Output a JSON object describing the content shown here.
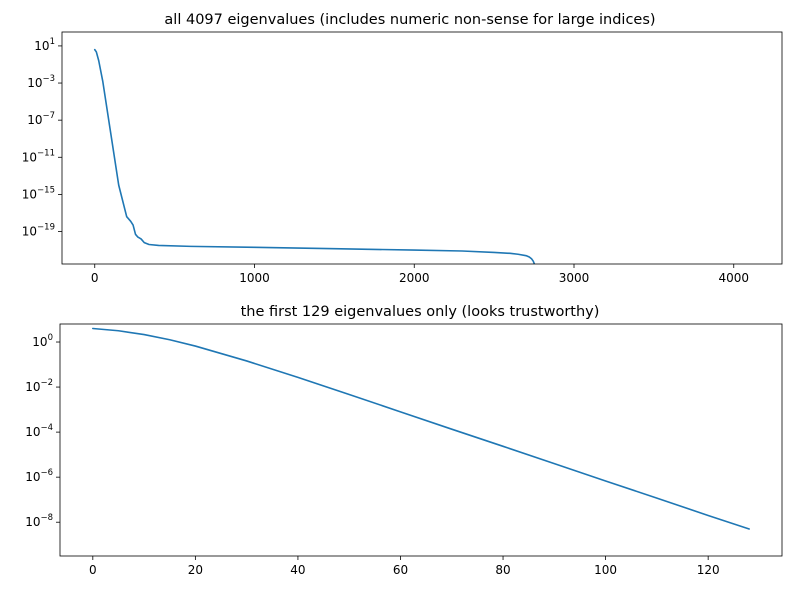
{
  "chart_data": [
    {
      "type": "line",
      "title": "all 4097 eigenvalues (includes numeric non-sense for large indices)",
      "xlabel": "",
      "ylabel": "",
      "yscale": "log",
      "xlim": [
        -205,
        4302
      ],
      "ylim_log10": [
        -22.5,
        2.5
      ],
      "xticks": [
        0,
        1000,
        2000,
        3000,
        4000
      ],
      "xtick_labels": [
        "0",
        "1000",
        "2000",
        "3000",
        "4000"
      ],
      "yticks_exp": [
        1,
        -3,
        -7,
        -11,
        -15,
        -19
      ],
      "ytick_labels": [
        {
          "base": "10",
          "exp": "1"
        },
        {
          "base": "10",
          "exp": "−3"
        },
        {
          "base": "10",
          "exp": "−7"
        },
        {
          "base": "10",
          "exp": "−11"
        },
        {
          "base": "10",
          "exp": "−15"
        },
        {
          "base": "10",
          "exp": "−19"
        }
      ],
      "grid": false,
      "color": "#1f77b4",
      "series": [
        {
          "x": [
            0,
            10,
            25,
            50,
            100,
            150,
            200,
            225,
            240,
            255,
            270,
            290,
            310,
            340,
            400,
            600,
            1000,
            1500,
            2000,
            2300,
            2500,
            2600,
            2650,
            2700,
            2720,
            2735,
            2745,
            2752,
            2755,
            2757
          ],
          "log10_y": [
            0.6,
            0.35,
            -0.6,
            -2.8,
            -8.4,
            -14.0,
            -17.4,
            -17.9,
            -18.3,
            -19.3,
            -19.6,
            -19.8,
            -20.2,
            -20.4,
            -20.5,
            -20.6,
            -20.7,
            -20.85,
            -21.0,
            -21.1,
            -21.25,
            -21.35,
            -21.45,
            -21.6,
            -21.75,
            -21.95,
            -22.2,
            -22.5,
            -23.0,
            -24.0
          ]
        }
      ]
    },
    {
      "type": "line",
      "title": "the first 129 eigenvalues only (looks trustworthy)",
      "xlabel": "",
      "ylabel": "",
      "yscale": "log",
      "xlim": [
        -6.4,
        134.4
      ],
      "ylim_log10": [
        -9.5,
        0.8
      ],
      "xticks": [
        0,
        20,
        40,
        60,
        80,
        100,
        120
      ],
      "xtick_labels": [
        "0",
        "20",
        "40",
        "60",
        "80",
        "100",
        "120"
      ],
      "yticks_exp": [
        0,
        -2,
        -4,
        -6,
        -8
      ],
      "ytick_labels": [
        {
          "base": "10",
          "exp": "0"
        },
        {
          "base": "10",
          "exp": "−2"
        },
        {
          "base": "10",
          "exp": "−4"
        },
        {
          "base": "10",
          "exp": "−6"
        },
        {
          "base": "10",
          "exp": "−8"
        }
      ],
      "grid": false,
      "color": "#1f77b4",
      "series": [
        {
          "x": [
            0,
            5,
            10,
            15,
            20,
            30,
            40,
            50,
            60,
            70,
            80,
            90,
            100,
            110,
            120,
            128
          ],
          "log10_y": [
            0.6,
            0.5,
            0.33,
            0.1,
            -0.18,
            -0.84,
            -1.57,
            -2.33,
            -3.1,
            -3.87,
            -4.63,
            -5.4,
            -6.17,
            -6.93,
            -7.7,
            -8.3
          ]
        }
      ]
    }
  ]
}
